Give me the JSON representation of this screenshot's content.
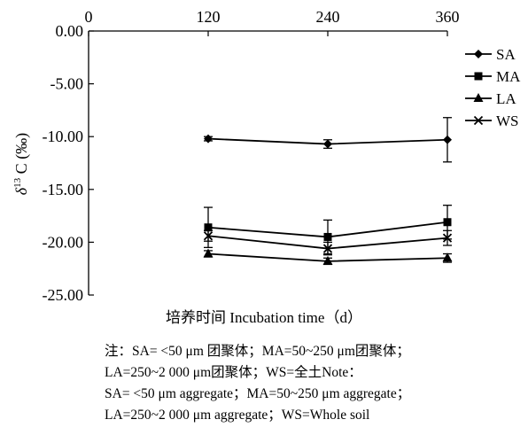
{
  "chart_data": {
    "type": "line",
    "x": [
      120,
      240,
      360
    ],
    "x_ticks": [
      "0",
      "120",
      "240",
      "360"
    ],
    "xlim": [
      0,
      360
    ],
    "x_axis_position": "top",
    "ylim": [
      -25,
      0
    ],
    "y_ticks": [
      "0.00",
      "-5.00",
      "-10.00",
      "-15.00",
      "-20.00",
      "-25.00"
    ],
    "ylabel": "δ13 C (‰)",
    "xlabel": "培养时间 Incubation time（d）",
    "legend_position": "right",
    "grid": false,
    "series": [
      {
        "name": "SA",
        "marker": "diamond",
        "values": [
          -10.2,
          -10.7,
          -10.3
        ],
        "errors": [
          0.2,
          0.4,
          2.1
        ]
      },
      {
        "name": "MA",
        "marker": "square",
        "values": [
          -18.6,
          -19.5,
          -18.1
        ],
        "errors": [
          1.9,
          1.6,
          1.6
        ]
      },
      {
        "name": "LA",
        "marker": "triangle",
        "values": [
          -21.1,
          -21.8,
          -21.5
        ],
        "errors": [
          0.3,
          0.3,
          0.4
        ]
      },
      {
        "name": "WS",
        "marker": "x",
        "values": [
          -19.4,
          -20.6,
          -19.6
        ],
        "errors": [
          0.5,
          0.6,
          0.7
        ]
      }
    ]
  },
  "note": {
    "line1": "注：SA= <50 μm 团聚体；MA=50~250 μm团聚体；",
    "line2": "LA=250~2 000 μm团聚体；WS=全土Note：",
    "line3": "SA= <50 μm aggregate；MA=50~250 μm aggregate；",
    "line4": "LA=250~2 000 μm aggregate；WS=Whole soil"
  }
}
